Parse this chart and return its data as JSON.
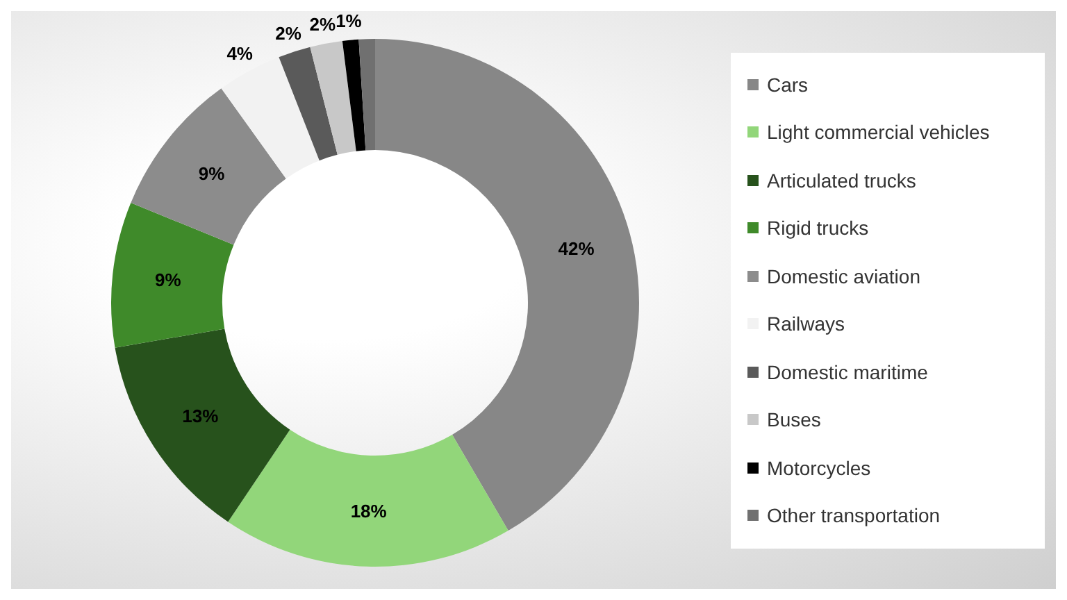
{
  "chart_data": {
    "type": "donut",
    "categories": [
      "Cars",
      "Light commercial vehicles",
      "Articulated trucks",
      "Rigid trucks",
      "Domestic aviation",
      "Railways",
      "Domestic maritime",
      "Buses",
      "Motorcycles",
      "Other transportation"
    ],
    "values": [
      42,
      18,
      13,
      9,
      9,
      4,
      2,
      2,
      1,
      1
    ],
    "colors": [
      "#878787",
      "#92d67a",
      "#27521c",
      "#3f8a2a",
      "#8c8c8c",
      "#f2f2f2",
      "#5a5a5a",
      "#c8c8c8",
      "#000000",
      "#707070"
    ],
    "value_labels": [
      "42%",
      "18%",
      "13%",
      "9%",
      "9%",
      "4%",
      "2%",
      "2%",
      "1%",
      null
    ],
    "legend": "right"
  }
}
